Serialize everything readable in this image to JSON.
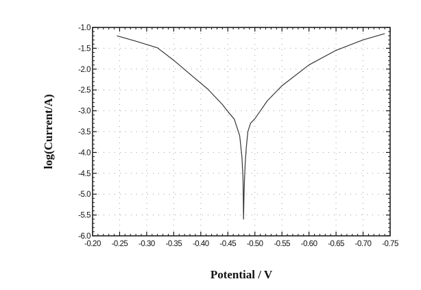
{
  "chart_data": {
    "type": "line",
    "title": "",
    "xlabel": "Potential / V",
    "ylabel": "log(Current/A)",
    "xlim": [
      -0.2,
      -0.75
    ],
    "ylim": [
      -6.0,
      -1.0
    ],
    "x_reversed": true,
    "grid": true,
    "grid_style": "dotted",
    "x_ticks": [
      "-0.20",
      "-0.25",
      "-0.30",
      "-0.35",
      "-0.40",
      "-0.45",
      "-0.50",
      "-0.55",
      "-0.60",
      "-0.65",
      "-0.70",
      "-0.75"
    ],
    "y_ticks": [
      "-1.0",
      "-1.5",
      "-2.0",
      "-2.5",
      "-3.0",
      "-3.5",
      "-4.0",
      "-4.5",
      "-5.0",
      "-5.5",
      "-6.0"
    ],
    "series": [
      {
        "color": "#333333",
        "x": [
          -0.245,
          -0.28,
          -0.32,
          -0.35,
          -0.38,
          -0.413,
          -0.44,
          -0.45,
          -0.462,
          -0.472,
          -0.476,
          -0.478,
          -0.479,
          -0.48,
          -0.481,
          -0.482,
          -0.484,
          -0.487,
          -0.492,
          -0.5,
          -0.523,
          -0.55,
          -0.6,
          -0.65,
          -0.7,
          -0.74
        ],
        "y": [
          -1.2,
          -1.33,
          -1.49,
          -1.79,
          -2.12,
          -2.48,
          -2.85,
          -3.02,
          -3.2,
          -3.6,
          -4.1,
          -4.6,
          -5.6,
          -5.0,
          -4.6,
          -4.3,
          -3.9,
          -3.5,
          -3.3,
          -3.19,
          -2.76,
          -2.4,
          -1.9,
          -1.55,
          -1.3,
          -1.15
        ]
      }
    ]
  }
}
